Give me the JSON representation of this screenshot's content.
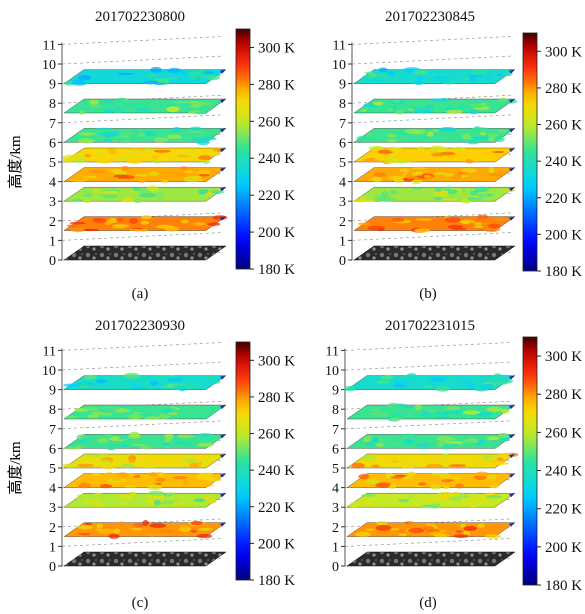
{
  "chart_data": [
    {
      "type": "heatmap",
      "panel_label": "(a)",
      "title": "201702230800",
      "ylabel": "高度/km",
      "yticks": [
        0,
        1,
        2,
        3,
        4,
        5,
        6,
        7,
        8,
        9,
        10,
        11
      ],
      "layers": [
        {
          "height_km": 0,
          "kind": "satellite-image"
        },
        {
          "height_km": 1.5,
          "mean_temp_K": 282
        },
        {
          "height_km": 3,
          "mean_temp_K": 256
        },
        {
          "height_km": 4,
          "mean_temp_K": 278
        },
        {
          "height_km": 5,
          "mean_temp_K": 272
        },
        {
          "height_km": 6,
          "mean_temp_K": 246
        },
        {
          "height_km": 7.5,
          "mean_temp_K": 246
        },
        {
          "height_km": 9,
          "mean_temp_K": 234
        }
      ],
      "colorbar": {
        "min": 180,
        "max": 310,
        "ticks": [
          "180 K",
          "200 K",
          "220 K",
          "240 K",
          "260 K",
          "280 K",
          "300 K"
        ]
      }
    },
    {
      "type": "heatmap",
      "panel_label": "(b)",
      "title": "201702230845",
      "ylabel": "高度/km",
      "yticks": [
        0,
        1,
        2,
        3,
        4,
        5,
        6,
        7,
        8,
        9,
        10,
        11
      ],
      "layers": [
        {
          "height_km": 0,
          "kind": "satellite-image"
        },
        {
          "height_km": 1.5,
          "mean_temp_K": 282
        },
        {
          "height_km": 3,
          "mean_temp_K": 256
        },
        {
          "height_km": 4,
          "mean_temp_K": 278
        },
        {
          "height_km": 5,
          "mean_temp_K": 274
        },
        {
          "height_km": 6,
          "mean_temp_K": 246
        },
        {
          "height_km": 7.5,
          "mean_temp_K": 246
        },
        {
          "height_km": 9,
          "mean_temp_K": 236
        }
      ],
      "colorbar": {
        "min": 180,
        "max": 310,
        "ticks": [
          "180 K",
          "200 K",
          "220 K",
          "240 K",
          "260 K",
          "280 K",
          "300 K"
        ]
      }
    },
    {
      "type": "heatmap",
      "panel_label": "(c)",
      "title": "201702230930",
      "ylabel": "高度/km",
      "yticks": [
        0,
        1,
        2,
        3,
        4,
        5,
        6,
        7,
        8,
        9,
        10,
        11
      ],
      "layers": [
        {
          "height_km": 0,
          "kind": "satellite-image"
        },
        {
          "height_km": 1.5,
          "mean_temp_K": 280
        },
        {
          "height_km": 3,
          "mean_temp_K": 258
        },
        {
          "height_km": 4,
          "mean_temp_K": 276
        },
        {
          "height_km": 5,
          "mean_temp_K": 268
        },
        {
          "height_km": 6,
          "mean_temp_K": 246
        },
        {
          "height_km": 7.5,
          "mean_temp_K": 246
        },
        {
          "height_km": 9,
          "mean_temp_K": 236
        }
      ],
      "colorbar": {
        "min": 180,
        "max": 310,
        "ticks": [
          "180 K",
          "200 K",
          "220 K",
          "240 K",
          "260 K",
          "280 K",
          "300 K"
        ]
      }
    },
    {
      "type": "heatmap",
      "panel_label": "(d)",
      "title": "201702231015",
      "ylabel": "高度/km",
      "yticks": [
        0,
        1,
        2,
        3,
        4,
        5,
        6,
        7,
        8,
        9,
        10,
        11
      ],
      "layers": [
        {
          "height_km": 0,
          "kind": "satellite-image"
        },
        {
          "height_km": 1.5,
          "mean_temp_K": 280
        },
        {
          "height_km": 3,
          "mean_temp_K": 260
        },
        {
          "height_km": 4,
          "mean_temp_K": 276
        },
        {
          "height_km": 5,
          "mean_temp_K": 270
        },
        {
          "height_km": 6,
          "mean_temp_K": 246
        },
        {
          "height_km": 7.5,
          "mean_temp_K": 246
        },
        {
          "height_km": 9,
          "mean_temp_K": 236
        }
      ],
      "colorbar": {
        "min": 180,
        "max": 310,
        "ticks": [
          "180 K",
          "200 K",
          "220 K",
          "240 K",
          "260 K",
          "280 K",
          "300 K"
        ]
      }
    }
  ]
}
